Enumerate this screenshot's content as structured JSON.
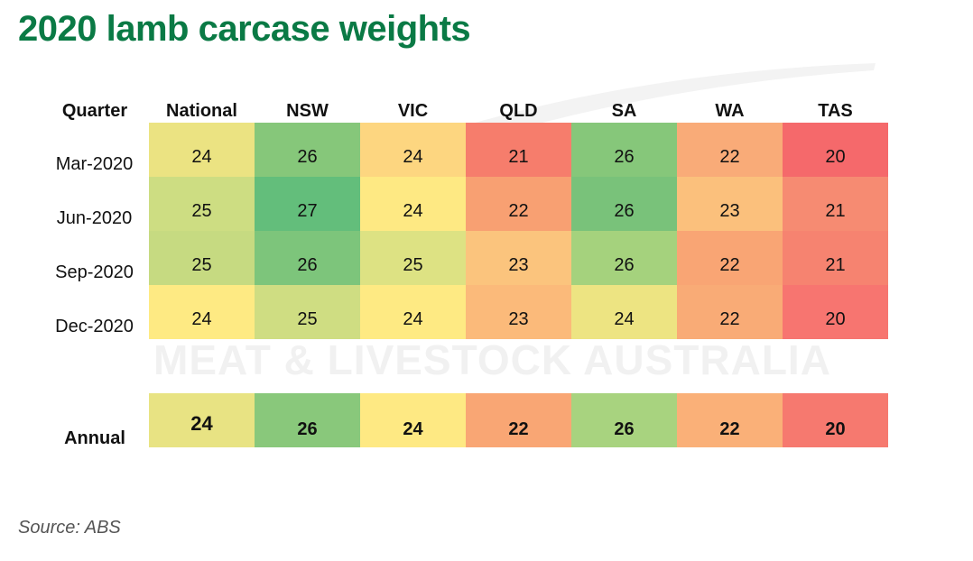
{
  "title": "2020 lamb carcase weights",
  "source": "Source: ABS",
  "watermark": "MEAT & LIVESTOCK AUSTRALIA",
  "colors": {
    "title": "#0a7a45"
  },
  "chart_data": {
    "type": "heatmap",
    "row_header": "Quarter",
    "columns": [
      "National",
      "NSW",
      "VIC",
      "QLD",
      "SA",
      "WA",
      "TAS"
    ],
    "rows": [
      {
        "label": "Mar-2020",
        "values": [
          24,
          26,
          24,
          21,
          26,
          22,
          20
        ],
        "colors": [
          "#ebe382",
          "#86c77a",
          "#fdd680",
          "#f67d6c",
          "#86c77a",
          "#f9ab78",
          "#f5696b"
        ]
      },
      {
        "label": "Jun-2020",
        "values": [
          25,
          27,
          24,
          22,
          26,
          23,
          21
        ],
        "colors": [
          "#cddd82",
          "#63be7b",
          "#fee983",
          "#f8a072",
          "#79c27a",
          "#fbc07c",
          "#f68b72"
        ]
      },
      {
        "label": "Sep-2020",
        "values": [
          25,
          26,
          25,
          23,
          26,
          22,
          21
        ],
        "colors": [
          "#c6da81",
          "#7dc57b",
          "#dde283",
          "#fbc47d",
          "#a5d27d",
          "#f9a574",
          "#f68370"
        ]
      },
      {
        "label": "Dec-2020",
        "values": [
          24,
          25,
          24,
          23,
          24,
          22,
          20
        ],
        "colors": [
          "#feea83",
          "#cfdd82",
          "#feea83",
          "#fbba7a",
          "#ede482",
          "#f9ab76",
          "#f77570"
        ]
      }
    ],
    "annual": {
      "label": "Annual",
      "values": [
        24,
        26,
        24,
        22,
        26,
        22,
        20
      ],
      "colors": [
        "#e8e383",
        "#89c87b",
        "#fee983",
        "#f9a674",
        "#a8d37f",
        "#fab078",
        "#f6796f"
      ]
    }
  }
}
